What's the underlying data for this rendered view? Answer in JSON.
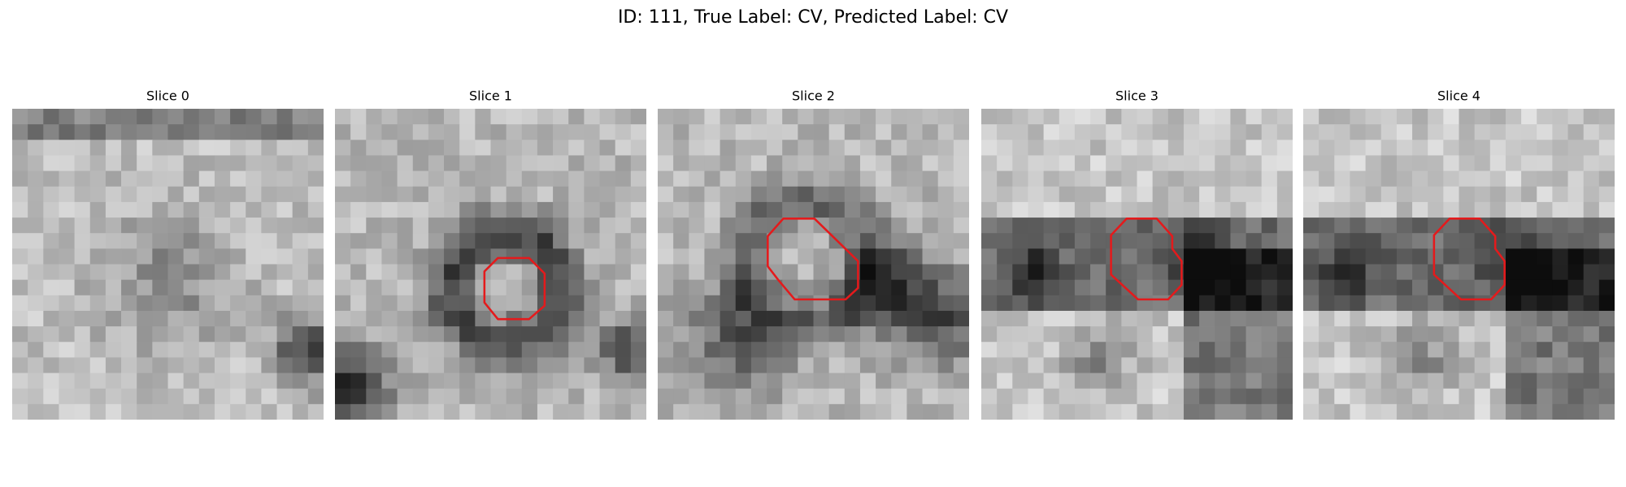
{
  "title": "ID: 111, True Label: CV, Predicted Label: CV",
  "panels": [
    {
      "title": "Slice 0"
    },
    {
      "title": "Slice 1"
    },
    {
      "title": "Slice 2"
    },
    {
      "title": "Slice 3"
    },
    {
      "title": "Slice 4"
    }
  ]
}
